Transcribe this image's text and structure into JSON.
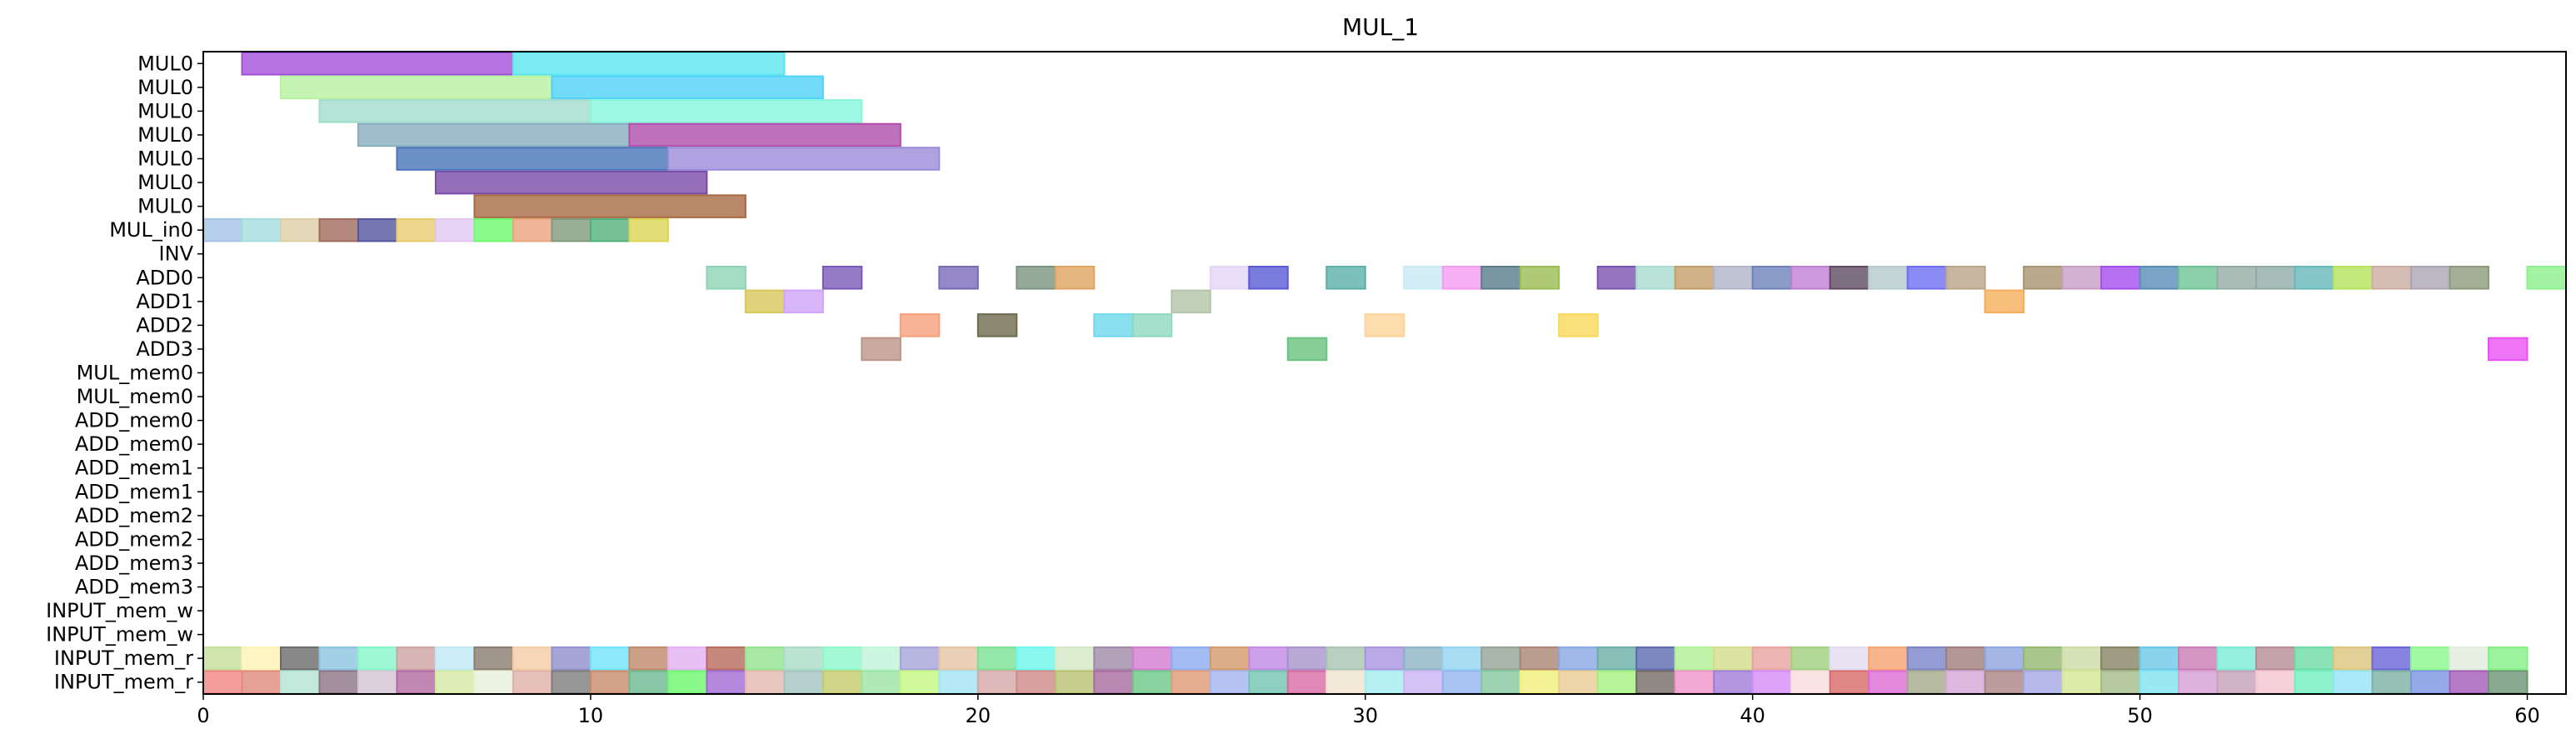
{
  "chart_data": {
    "type": "gantt",
    "title": "MUL_1",
    "xlim": [
      0,
      61
    ],
    "x_ticks": [
      0,
      10,
      20,
      30,
      40,
      50,
      60
    ],
    "rows": [
      "MUL0",
      "MUL0",
      "MUL0",
      "MUL0",
      "MUL0",
      "MUL0",
      "MUL0",
      "MUL_in0",
      "INV",
      "ADD0",
      "ADD1",
      "ADD2",
      "ADD3",
      "MUL_mem0",
      "MUL_mem0",
      "ADD_mem0",
      "ADD_mem0",
      "ADD_mem1",
      "ADD_mem1",
      "ADD_mem2",
      "ADD_mem2",
      "ADD_mem3",
      "ADD_mem3",
      "INPUT_mem_w",
      "INPUT_mem_w",
      "INPUT_mem_r",
      "INPUT_mem_r"
    ],
    "tasks": [
      {
        "row": 0,
        "start": 1,
        "end": 8,
        "color": "#a24fd8"
      },
      {
        "row": 0,
        "start": 8,
        "end": 15,
        "color": "#5be6ee"
      },
      {
        "row": 1,
        "start": 2,
        "end": 9,
        "color": "#b8f2a0"
      },
      {
        "row": 1,
        "start": 9,
        "end": 16,
        "color": "#4fd2f8"
      },
      {
        "row": 2,
        "start": 3,
        "end": 10,
        "color": "#a2dccc"
      },
      {
        "row": 2,
        "start": 10,
        "end": 17,
        "color": "#86f6dc"
      },
      {
        "row": 3,
        "start": 4,
        "end": 11,
        "color": "#88acbe"
      },
      {
        "row": 3,
        "start": 11,
        "end": 18,
        "color": "#b04eaa"
      },
      {
        "row": 4,
        "start": 5,
        "end": 12,
        "color": "#4a74bc"
      },
      {
        "row": 4,
        "start": 12,
        "end": 19,
        "color": "#9a8cd8"
      },
      {
        "row": 5,
        "start": 6,
        "end": 13,
        "color": "#7a4aa8"
      },
      {
        "row": 6,
        "start": 7,
        "end": 14,
        "color": "#a86a44"
      },
      {
        "row": 7,
        "start": 0,
        "end": 1,
        "color": "#a4c2e6"
      },
      {
        "row": 7,
        "start": 1,
        "end": 2,
        "color": "#a4dcdc"
      },
      {
        "row": 7,
        "start": 2,
        "end": 3,
        "color": "#dcd0a8"
      },
      {
        "row": 7,
        "start": 3,
        "end": 4,
        "color": "#a06a5c"
      },
      {
        "row": 7,
        "start": 4,
        "end": 5,
        "color": "#52569c"
      },
      {
        "row": 7,
        "start": 5,
        "end": 6,
        "color": "#e6cc6e"
      },
      {
        "row": 7,
        "start": 6,
        "end": 7,
        "color": "#e0c8f2"
      },
      {
        "row": 7,
        "start": 7,
        "end": 8,
        "color": "#6efa6e"
      },
      {
        "row": 7,
        "start": 8,
        "end": 9,
        "color": "#eaa47c"
      },
      {
        "row": 7,
        "start": 9,
        "end": 10,
        "color": "#7e9a7a"
      },
      {
        "row": 7,
        "start": 10,
        "end": 11,
        "color": "#52b07c"
      },
      {
        "row": 7,
        "start": 11,
        "end": 12,
        "color": "#dcd452"
      },
      {
        "row": 9,
        "start": 13,
        "end": 14,
        "color": "#8ed4b4"
      },
      {
        "row": 9,
        "start": 16,
        "end": 17,
        "color": "#7a5ab8"
      },
      {
        "row": 9,
        "start": 19,
        "end": 20,
        "color": "#7a6ab8"
      },
      {
        "row": 9,
        "start": 21,
        "end": 22,
        "color": "#7a9480"
      },
      {
        "row": 9,
        "start": 22,
        "end": 23,
        "color": "#e0a460"
      },
      {
        "row": 9,
        "start": 26,
        "end": 27,
        "color": "#e4d6f6"
      },
      {
        "row": 9,
        "start": 27,
        "end": 28,
        "color": "#5a5ad6"
      },
      {
        "row": 9,
        "start": 29,
        "end": 30,
        "color": "#5ab0aa"
      },
      {
        "row": 9,
        "start": 31,
        "end": 32,
        "color": "#c8eaf4"
      },
      {
        "row": 9,
        "start": 32,
        "end": 33,
        "color": "#f49cf0"
      },
      {
        "row": 9,
        "start": 33,
        "end": 34,
        "color": "#5a7c8c"
      },
      {
        "row": 9,
        "start": 34,
        "end": 35,
        "color": "#9cbc52"
      },
      {
        "row": 9,
        "start": 36,
        "end": 37,
        "color": "#7a52b0"
      },
      {
        "row": 9,
        "start": 37,
        "end": 38,
        "color": "#a8dcd0"
      },
      {
        "row": 9,
        "start": 38,
        "end": 39,
        "color": "#c49e6a"
      },
      {
        "row": 9,
        "start": 39,
        "end": 40,
        "color": "#b0b4c8"
      },
      {
        "row": 9,
        "start": 40,
        "end": 41,
        "color": "#6e82ba"
      },
      {
        "row": 9,
        "start": 41,
        "end": 42,
        "color": "#c07ed4"
      },
      {
        "row": 9,
        "start": 42,
        "end": 43,
        "color": "#5e4a62"
      },
      {
        "row": 9,
        "start": 43,
        "end": 44,
        "color": "#b4ccca"
      },
      {
        "row": 9,
        "start": 44,
        "end": 45,
        "color": "#6e6ef2"
      },
      {
        "row": 9,
        "start": 45,
        "end": 46,
        "color": "#bca488"
      },
      {
        "row": 9,
        "start": 47,
        "end": 48,
        "color": "#a89470"
      },
      {
        "row": 9,
        "start": 48,
        "end": 49,
        "color": "#c89ec4"
      },
      {
        "row": 9,
        "start": 49,
        "end": 50,
        "color": "#a44ef0"
      },
      {
        "row": 9,
        "start": 50,
        "end": 51,
        "color": "#5a8cb8"
      },
      {
        "row": 9,
        "start": 51,
        "end": 52,
        "color": "#6ec496"
      },
      {
        "row": 9,
        "start": 52,
        "end": 53,
        "color": "#94aca4"
      },
      {
        "row": 9,
        "start": 53,
        "end": 54,
        "color": "#8eaca4"
      },
      {
        "row": 9,
        "start": 54,
        "end": 55,
        "color": "#66b8bc"
      },
      {
        "row": 9,
        "start": 55,
        "end": 56,
        "color": "#b4e45c"
      },
      {
        "row": 9,
        "start": 56,
        "end": 57,
        "color": "#ccaca0"
      },
      {
        "row": 9,
        "start": 57,
        "end": 58,
        "color": "#aca4b4"
      },
      {
        "row": 9,
        "start": 58,
        "end": 59,
        "color": "#8c9a7c"
      },
      {
        "row": 9,
        "start": 60,
        "end": 61,
        "color": "#8cf08c"
      },
      {
        "row": 10,
        "start": 14,
        "end": 15,
        "color": "#d8c85a"
      },
      {
        "row": 10,
        "start": 15,
        "end": 16,
        "color": "#d0a4f8"
      },
      {
        "row": 10,
        "start": 25,
        "end": 26,
        "color": "#b4c4a8"
      },
      {
        "row": 10,
        "start": 46,
        "end": 47,
        "color": "#f4ac5a"
      },
      {
        "row": 11,
        "start": 18,
        "end": 19,
        "color": "#f6a07c"
      },
      {
        "row": 11,
        "start": 20,
        "end": 21,
        "color": "#6e6a4e"
      },
      {
        "row": 11,
        "start": 23,
        "end": 24,
        "color": "#6ed8ec"
      },
      {
        "row": 11,
        "start": 24,
        "end": 25,
        "color": "#8ed8c0"
      },
      {
        "row": 11,
        "start": 30,
        "end": 31,
        "color": "#fcd49a"
      },
      {
        "row": 11,
        "start": 35,
        "end": 36,
        "color": "#f8d85a"
      },
      {
        "row": 12,
        "start": 17,
        "end": 18,
        "color": "#bc9488"
      },
      {
        "row": 12,
        "start": 28,
        "end": 29,
        "color": "#6ac27e"
      },
      {
        "row": 12,
        "start": 59,
        "end": 60,
        "color": "#e852f4"
      }
    ],
    "row25_colors": [
      "#c4e09a",
      "#fcf2b4",
      "#6a6a6a",
      "#8cc4e0",
      "#84f6c8",
      "#d0a4a4",
      "#c0e8f4",
      "#8a7c6e",
      "#f4cca4",
      "#9090cc",
      "#6ee4f8",
      "#c08a6a",
      "#e4b0f4",
      "#b86a5c",
      "#94e490",
      "#aadcc8",
      "#8cf8c8",
      "#c0f4d8",
      "#a4a4d8",
      "#e4c4a4",
      "#7ae094",
      "#6cf8ec",
      "#d4e8c4",
      "#a088a8",
      "#d47ad0",
      "#8cacf0",
      "#d49a6a",
      "#c08ae4",
      "#a894cc",
      "#a8c4b0",
      "#a894e0",
      "#8cb4c4",
      "#94d4f0",
      "#94a494",
      "#aa8474",
      "#8aa8e4",
      "#6ab0a8",
      "#5e6ab0",
      "#b0f094",
      "#d4dc8a",
      "#e8a4a0",
      "#a0d07e",
      "#e4dcf0",
      "#f8a470",
      "#7a82c8",
      "#a07c7c",
      "#8ca4e0",
      "#94b870",
      "#ccdca4",
      "#868464",
      "#6cc8e8",
      "#cc7cb4",
      "#7cecd8",
      "#b48c94",
      "#6cdca4",
      "#dcc47c",
      "#6a64d8",
      "#8cf88c",
      "#e0ecdc",
      "#84f084"
    ],
    "row26_colors": [
      "#f08484",
      "#e08a7c",
      "#b4e4d4",
      "#8c7484",
      "#d4c4d4",
      "#b06aa0",
      "#d4e8a4",
      "#e8f0dc",
      "#e0b0a8",
      "#7c7c7c",
      "#c88a6a",
      "#6cb890",
      "#6cf86c",
      "#a06ad4",
      "#e4b8b0",
      "#a4c4c0",
      "#c4cc6c",
      "#9ce4a4",
      "#c4f880",
      "#a4e4f4",
      "#d4a8a8",
      "#d08888",
      "#b8c070",
      "#a86ca0",
      "#6cc888",
      "#e09a74",
      "#a4b4f0",
      "#70c4b0",
      "#d86aa4",
      "#f0e4d0",
      "#a4ecf0",
      "#ccb4f4",
      "#94b4f0",
      "#84c8a0",
      "#f0f07c",
      "#e8cc94",
      "#a4f080",
      "#746a64",
      "#f094c8",
      "#a07cd8",
      "#d48cf8",
      "#f8dcdc",
      "#d86a6a",
      "#dc6ad4",
      "#a4aa8a",
      "#d4a8d8",
      "#aa8484",
      "#a4a8e4",
      "#d4e894",
      "#a4bc8a",
      "#80e4f0",
      "#d4a0d4",
      "#c4a0b8",
      "#f4c4d0",
      "#70f0c0",
      "#94e4f8",
      "#7cb0a0",
      "#7c94e4",
      "#a45ab8",
      "#6c9474"
    ]
  }
}
